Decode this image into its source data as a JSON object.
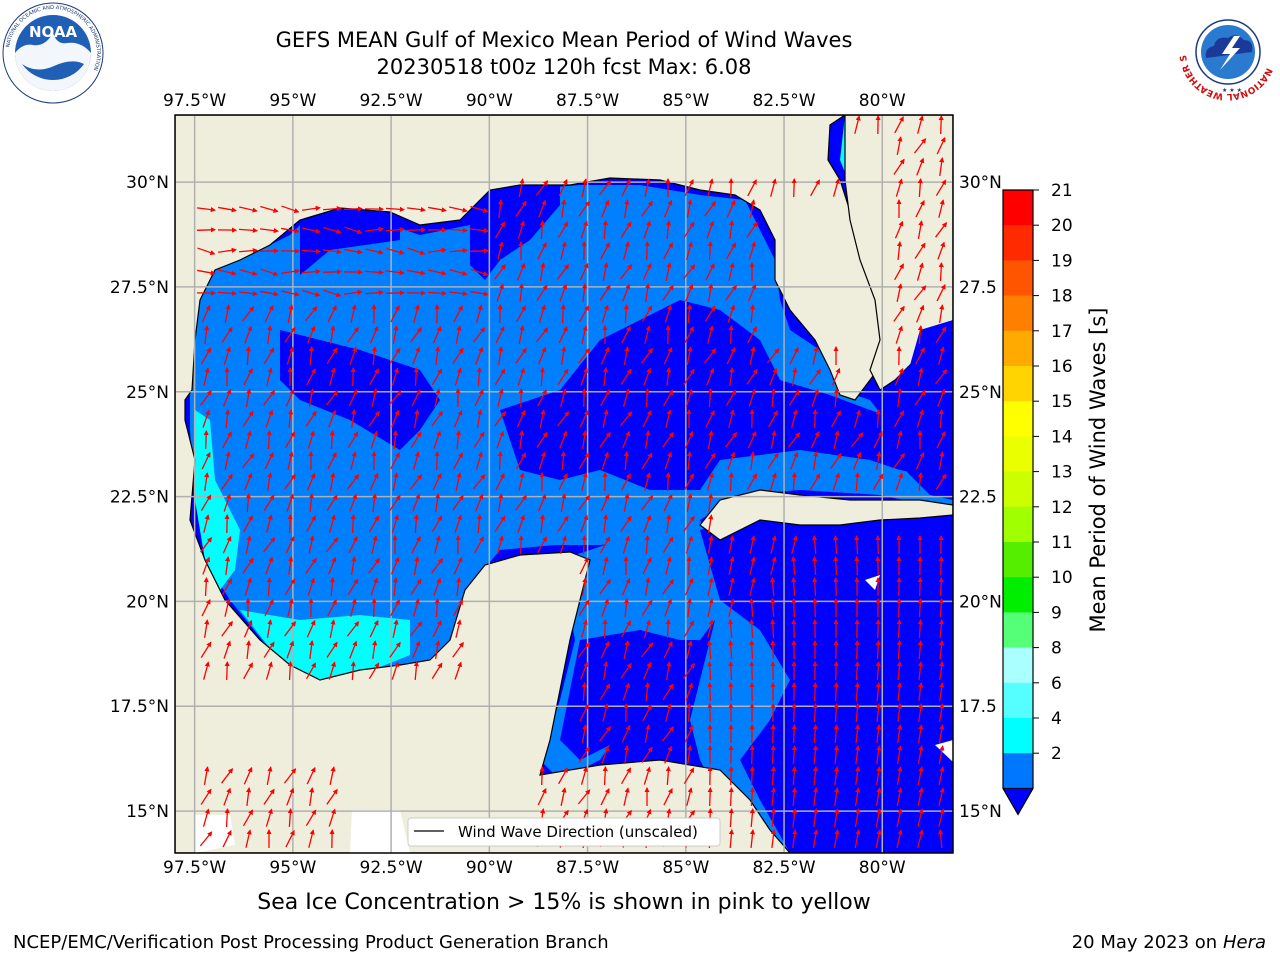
{
  "title_line1": "GEFS MEAN Gulf of Mexico Mean Period of Wind Waves",
  "title_line2": "20230518 t00z 120h fcst   Max: 6.08",
  "lon_labels": [
    "97.5°W",
    "95°W",
    "92.5°W",
    "90°W",
    "87.5°W",
    "85°W",
    "82.5°W",
    "80°W"
  ],
  "lat_labels_left": [
    "30°N",
    "27.5°N",
    "25°N",
    "22.5°N",
    "20°N",
    "17.5°N",
    "15°N"
  ],
  "lat_labels_right": [
    "30°N",
    "27.5",
    "25°N",
    "22.5",
    "20°N",
    "17.5",
    "15°N"
  ],
  "map_extent": {
    "lon_min": -98,
    "lon_max": -78.2,
    "lat_min": 14,
    "lat_max": 31.6
  },
  "legend_text": "Wind Wave Direction (unscaled)",
  "colorbar": {
    "title": "Mean Period of Wind Waves [s]",
    "ticks": [
      "21",
      "20",
      "19",
      "18",
      "17",
      "16",
      "15",
      "14",
      "13",
      "12",
      "11",
      "10",
      "9",
      "8",
      "6",
      "4",
      "2"
    ],
    "colors": [
      "#ff0000",
      "#ff2a00",
      "#ff5500",
      "#ff8000",
      "#ffaa00",
      "#ffd400",
      "#ffff00",
      "#eaff00",
      "#ccff00",
      "#a0ff00",
      "#55ee00",
      "#00ee00",
      "#55ff77",
      "#aaffff",
      "#55ffff",
      "#00ffff",
      "#0077ff"
    ],
    "extend_color": "#0000ff"
  },
  "colors": {
    "land": "#efeedc",
    "period_2_4": "#0080ff",
    "period_4_6": "#00ffff",
    "below_2": "#0000ff",
    "arrows": "#ff0000",
    "grid": "#b0b0b0"
  },
  "caption": "Sea Ice Concentration > 15% is shown in pink to yellow",
  "footer_left": "NCEP/EMC/Verification Post Processing Product Generation Branch",
  "footer_right_date": "20 May 2023 on",
  "footer_right_host": "Hera",
  "logos": {
    "noaa_text": "NOAA",
    "noaa_ring": "NATIONAL OCEANIC AND ATMOSPHERIC ADMINISTRATION",
    "nws_ring": "NATIONAL WEATHER SERVICE"
  }
}
